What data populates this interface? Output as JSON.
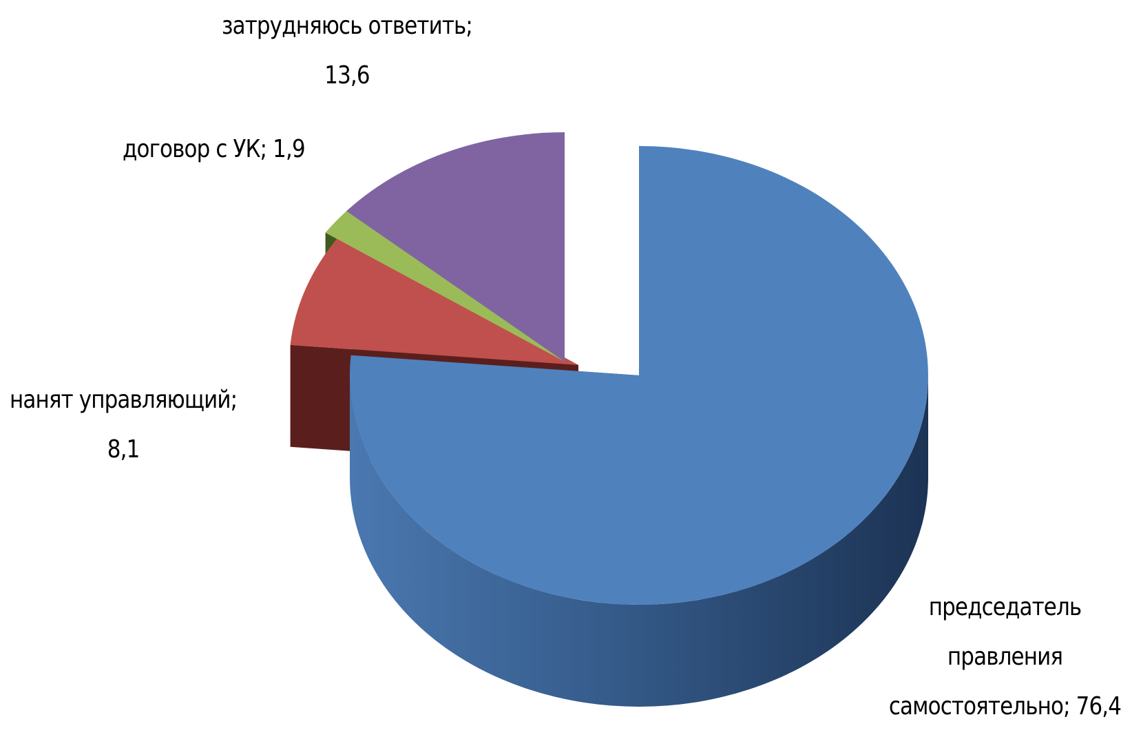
{
  "chart_data": {
    "type": "pie",
    "style": "3d exploded",
    "slices": [
      {
        "label_lines": [
          "председатель",
          "правления",
          "самостоятельно; 76,4"
        ],
        "category": "председатель правления самостоятельно",
        "value": 76.4,
        "color": "#4f81bd",
        "side_color": "#2a4466"
      },
      {
        "label_lines": [
          "нанят управляющий;",
          "8,1"
        ],
        "category": "нанят управляющий",
        "value": 8.1,
        "color": "#c0504d",
        "side_color": "#5a1f1d"
      },
      {
        "label_lines": [
          "договор с УК; 1,9"
        ],
        "category": "договор с УК",
        "value": 1.9,
        "color": "#9bbb59",
        "side_color": "#3e5a1e"
      },
      {
        "label_lines": [
          "затрудняюсь ответить;",
          "13,6"
        ],
        "category": "затрудняюсь ответить",
        "value": 13.6,
        "color": "#8064a2",
        "side_color": "#2f2645"
      }
    ]
  }
}
